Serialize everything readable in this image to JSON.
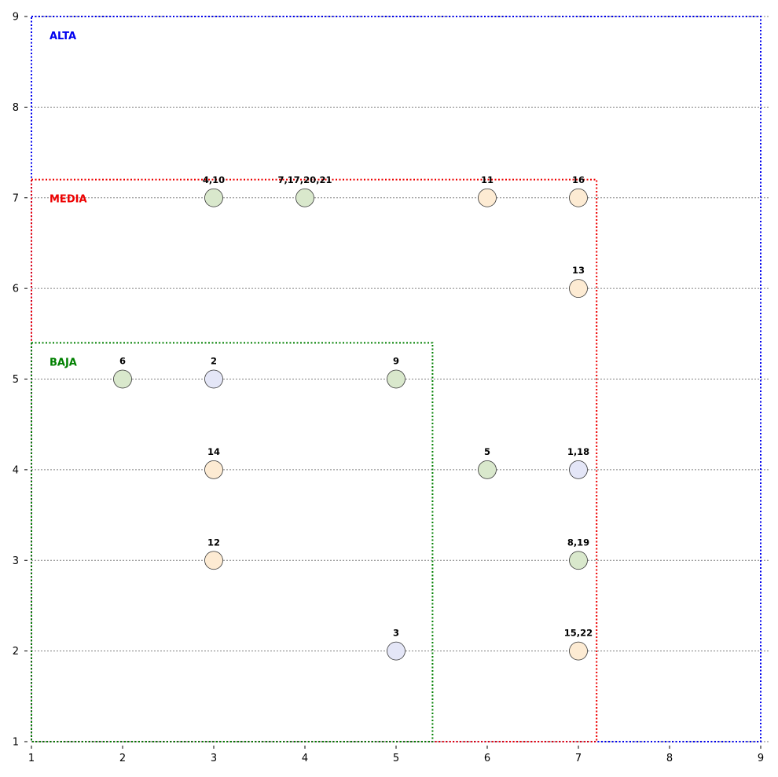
{
  "chart_data": {
    "type": "scatter",
    "title": "",
    "xlabel": "",
    "ylabel": "",
    "xlim": [
      1,
      9
    ],
    "ylim": [
      1,
      9
    ],
    "xticks": [
      1,
      2,
      3,
      4,
      5,
      6,
      7,
      8,
      9
    ],
    "yticks": [
      1,
      2,
      3,
      4,
      5,
      6,
      7,
      8,
      9
    ],
    "grid": "horizontal dotted",
    "zones": [
      {
        "name": "ALTA",
        "x_max": 9,
        "y_max": 9,
        "color": "#0000ee"
      },
      {
        "name": "MEDIA",
        "x_max": 7.2,
        "y_max": 7.2,
        "color": "#ee0000"
      },
      {
        "name": "BAJA",
        "x_max": 5.4,
        "y_max": 5.4,
        "color": "#008000"
      }
    ],
    "point_colors": {
      "green": "#d9e8cc",
      "orange": "#fdebd3",
      "blue": "#e4e6f7"
    },
    "points": [
      {
        "label": "4,10",
        "x": 3,
        "y": 7,
        "color": "green"
      },
      {
        "label": "7,17,20,21",
        "x": 4,
        "y": 7,
        "color": "green"
      },
      {
        "label": "11",
        "x": 6,
        "y": 7,
        "color": "orange"
      },
      {
        "label": "16",
        "x": 7,
        "y": 7,
        "color": "orange"
      },
      {
        "label": "13",
        "x": 7,
        "y": 6,
        "color": "orange"
      },
      {
        "label": "6",
        "x": 2,
        "y": 5,
        "color": "green"
      },
      {
        "label": "2",
        "x": 3,
        "y": 5,
        "color": "blue"
      },
      {
        "label": "9",
        "x": 5,
        "y": 5,
        "color": "green"
      },
      {
        "label": "14",
        "x": 3,
        "y": 4,
        "color": "orange"
      },
      {
        "label": "5",
        "x": 6,
        "y": 4,
        "color": "green"
      },
      {
        "label": "1,18",
        "x": 7,
        "y": 4,
        "color": "blue"
      },
      {
        "label": "12",
        "x": 3,
        "y": 3,
        "color": "orange"
      },
      {
        "label": "8,19",
        "x": 7,
        "y": 3,
        "color": "green"
      },
      {
        "label": "3",
        "x": 5,
        "y": 2,
        "color": "blue"
      },
      {
        "label": "15,22",
        "x": 7,
        "y": 2,
        "color": "orange"
      }
    ]
  }
}
